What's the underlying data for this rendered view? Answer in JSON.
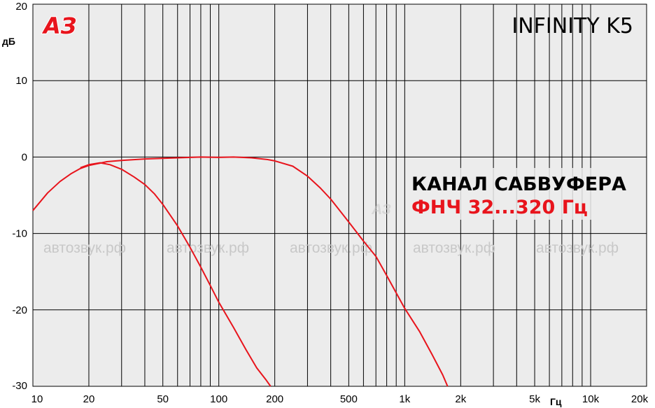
{
  "chart_data": {
    "type": "line",
    "title": "INFINITY K5",
    "ylabel": "дБ",
    "xlabel": "Гц",
    "x_scale": "log",
    "xlim": [
      10,
      20000
    ],
    "ylim": [
      -30,
      20
    ],
    "grid": true,
    "x_ticks": [
      {
        "value": 10,
        "label": "10"
      },
      {
        "value": 20,
        "label": "20"
      },
      {
        "value": 50,
        "label": "50"
      },
      {
        "value": 100,
        "label": "100"
      },
      {
        "value": 200,
        "label": "200"
      },
      {
        "value": 500,
        "label": "500"
      },
      {
        "value": 1000,
        "label": "1k"
      },
      {
        "value": 2000,
        "label": "2k"
      },
      {
        "value": 5000,
        "label": "5k"
      },
      {
        "value": 10000,
        "label": "10k"
      },
      {
        "value": 20000,
        "label": "20k"
      }
    ],
    "y_ticks": [
      {
        "value": 20,
        "label": "20"
      },
      {
        "value": 10,
        "label": "10"
      },
      {
        "value": 0,
        "label": "0"
      },
      {
        "value": -10,
        "label": "-10"
      },
      {
        "value": -20,
        "label": "-20"
      },
      {
        "value": -30,
        "label": "-30"
      }
    ],
    "series": [
      {
        "color": "#e8141c",
        "points": [
          [
            10,
            -7
          ],
          [
            11,
            -5.8
          ],
          [
            12,
            -4.7
          ],
          [
            14,
            -3.2
          ],
          [
            16,
            -2.2
          ],
          [
            18,
            -1.5
          ],
          [
            20,
            -1.1
          ],
          [
            22,
            -0.9
          ],
          [
            23,
            -0.8
          ],
          [
            25,
            -0.6
          ],
          [
            30,
            -0.45
          ],
          [
            40,
            -0.25
          ],
          [
            60,
            -0.1
          ],
          [
            80,
            0.0
          ],
          [
            100,
            -0.05
          ],
          [
            120,
            0.0
          ],
          [
            150,
            -0.1
          ],
          [
            180,
            -0.3
          ],
          [
            200,
            -0.5
          ],
          [
            250,
            -1.2
          ],
          [
            300,
            -2.5
          ],
          [
            350,
            -4.0
          ],
          [
            400,
            -5.5
          ],
          [
            500,
            -8.5
          ],
          [
            600,
            -11.0
          ],
          [
            700,
            -13.0
          ],
          [
            800,
            -15.5
          ],
          [
            1000,
            -19.8
          ],
          [
            1200,
            -22.8
          ],
          [
            1400,
            -25.8
          ],
          [
            1600,
            -28.5
          ],
          [
            1700,
            -30
          ]
        ]
      },
      {
        "color": "#e8141c",
        "points": [
          [
            18,
            -1.4
          ],
          [
            20,
            -1.0
          ],
          [
            23,
            -0.75
          ],
          [
            26,
            -1.0
          ],
          [
            30,
            -1.6
          ],
          [
            35,
            -2.6
          ],
          [
            40,
            -3.6
          ],
          [
            45,
            -4.8
          ],
          [
            50,
            -6.2
          ],
          [
            60,
            -9.0
          ],
          [
            70,
            -11.8
          ],
          [
            80,
            -14.4
          ],
          [
            90,
            -16.8
          ],
          [
            100,
            -19.0
          ],
          [
            120,
            -22.3
          ],
          [
            140,
            -25.2
          ],
          [
            160,
            -27.6
          ],
          [
            180,
            -29.2
          ],
          [
            190,
            -30
          ]
        ]
      }
    ],
    "annotations": [
      {
        "text": "КАНАЛ САБВУФЕРА",
        "color": "#000000"
      },
      {
        "text": "ФНЧ 32...320 Гц",
        "color": "#e8141c"
      }
    ]
  },
  "watermark": {
    "text": "автозвук.рф",
    "logo_text": "АЗ",
    "color": "#c8c8c8"
  },
  "colors": {
    "plot_background": "#ececec",
    "grid": "#000000",
    "curve": "#e8141c"
  }
}
